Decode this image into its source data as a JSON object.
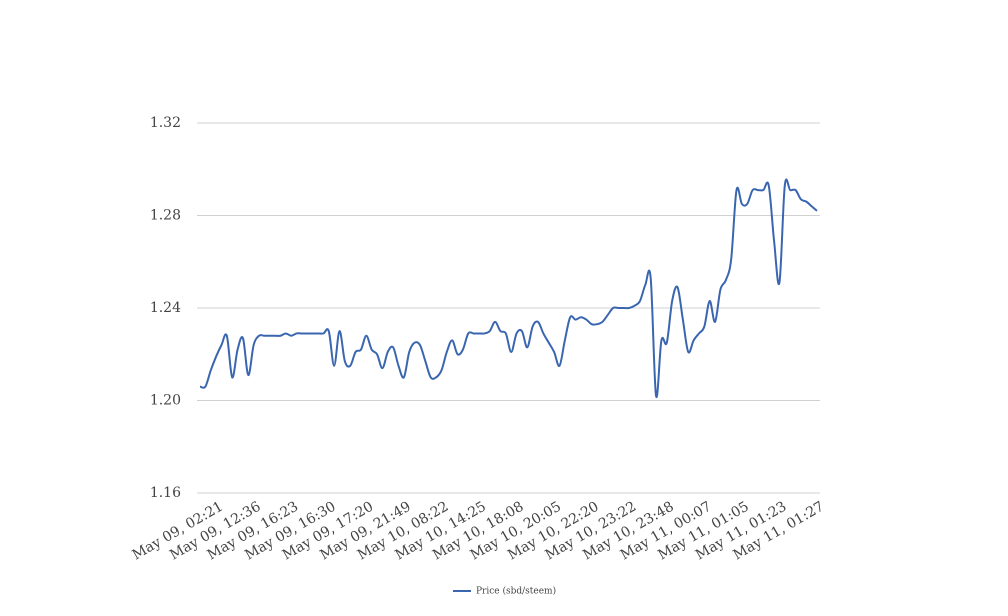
{
  "chart_data": {
    "type": "line",
    "categories": [
      "May 09, 02:21",
      null,
      null,
      null,
      null,
      null,
      null,
      "May 09, 12:36",
      null,
      null,
      null,
      null,
      null,
      null,
      "May 09, 16:23",
      null,
      null,
      null,
      null,
      null,
      null,
      "May 09, 16:30",
      null,
      null,
      null,
      null,
      null,
      null,
      "May 09, 17:20",
      null,
      null,
      null,
      null,
      null,
      null,
      "May 09, 21:49",
      null,
      null,
      null,
      null,
      null,
      null,
      "May 10, 08:22",
      null,
      null,
      null,
      null,
      null,
      null,
      "May 10, 14:25",
      null,
      null,
      null,
      null,
      null,
      null,
      "May 10, 18:08",
      null,
      null,
      null,
      null,
      null,
      null,
      "May 10, 20:05",
      null,
      null,
      null,
      null,
      null,
      null,
      "May 10, 22:20",
      null,
      null,
      null,
      null,
      null,
      null,
      "May 10, 23:22",
      null,
      null,
      null,
      null,
      null,
      null,
      "May 10, 23:48",
      null,
      null,
      null,
      null,
      null,
      null,
      "May 11, 00:07",
      null,
      null,
      null,
      null,
      null,
      null,
      "May 11, 01:05",
      null,
      null,
      null,
      null,
      null,
      null,
      "May 11, 01:23",
      null,
      null,
      null,
      null,
      null,
      null,
      "May 11, 01:27",
      null,
      null,
      null
    ],
    "series": [
      {
        "name": "Price (sbd/steem)",
        "color": "#3a66b0",
        "values": [
          1.206,
          1.206,
          1.213,
          1.219,
          1.224,
          1.228,
          1.21,
          1.222,
          1.227,
          1.211,
          1.224,
          1.228,
          1.228,
          1.228,
          1.228,
          1.228,
          1.229,
          1.228,
          1.229,
          1.229,
          1.229,
          1.229,
          1.229,
          1.229,
          1.23,
          1.215,
          1.23,
          1.217,
          1.215,
          1.221,
          1.222,
          1.228,
          1.222,
          1.22,
          1.214,
          1.221,
          1.223,
          1.215,
          1.21,
          1.221,
          1.225,
          1.224,
          1.217,
          1.21,
          1.21,
          1.213,
          1.221,
          1.226,
          1.22,
          1.222,
          1.229,
          1.229,
          1.229,
          1.229,
          1.23,
          1.234,
          1.23,
          1.229,
          1.221,
          1.229,
          1.23,
          1.223,
          1.232,
          1.234,
          1.229,
          1.225,
          1.221,
          1.215,
          1.226,
          1.236,
          1.235,
          1.236,
          1.235,
          1.233,
          1.233,
          1.234,
          1.237,
          1.24,
          1.24,
          1.24,
          1.24,
          1.241,
          1.243,
          1.25,
          1.253,
          1.202,
          1.226,
          1.225,
          1.243,
          1.249,
          1.235,
          1.221,
          1.226,
          1.229,
          1.232,
          1.243,
          1.234,
          1.248,
          1.252,
          1.261,
          1.291,
          1.285,
          1.285,
          1.291,
          1.291,
          1.291,
          1.293,
          1.269,
          1.251,
          1.293,
          1.291,
          1.291,
          1.287,
          1.286,
          1.284,
          1.282
        ]
      }
    ],
    "ylim": [
      1.16,
      1.32
    ],
    "yticks": [
      1.16,
      {
        "value": 1.2,
        "label": "1.20"
      },
      1.24,
      1.28,
      1.32
    ],
    "grid": true,
    "legend": "bottom"
  }
}
